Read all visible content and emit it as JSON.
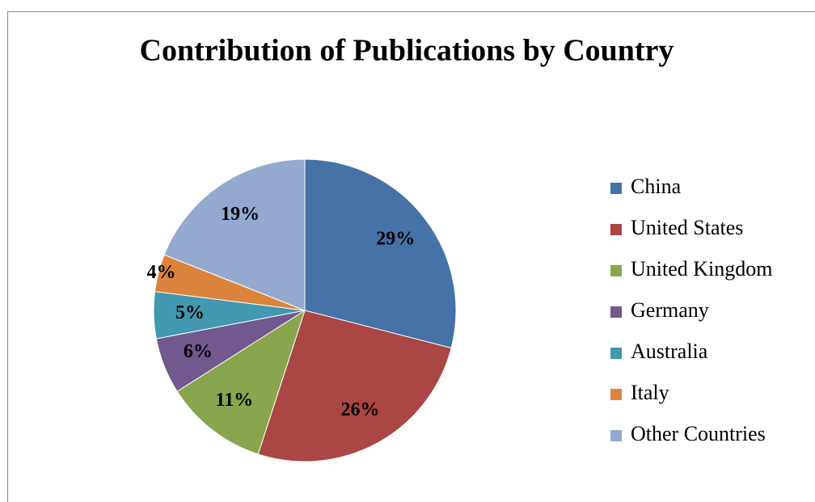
{
  "chart_data": {
    "type": "pie",
    "title": "Contribution of Publications by Country",
    "categories": [
      "China",
      "United States",
      "United Kingdom",
      "Germany",
      "Australia",
      "Italy",
      "Other Countries"
    ],
    "values": [
      29,
      26,
      11,
      6,
      5,
      4,
      19
    ],
    "value_labels": [
      "29%",
      "26%",
      "11%",
      "6%",
      "5%",
      "4%",
      "19%"
    ],
    "colors": [
      "#4572A7",
      "#AA4643",
      "#89A54E",
      "#71588F",
      "#4198AF",
      "#DB843D",
      "#93A9CF"
    ],
    "legend": "right"
  }
}
